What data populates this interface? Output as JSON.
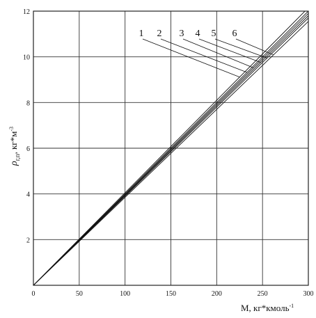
{
  "chart_data": {
    "type": "line",
    "title": "",
    "xlabel": "M, кг*кмоль",
    "xlabel_sup": "-1",
    "ylabel": "ρ",
    "ylabel_sub": "г,п",
    "ylabel_unit": ", кг*м",
    "ylabel_sup": "-3",
    "xlim": [
      0,
      300
    ],
    "ylim": [
      0,
      12
    ],
    "xticks": [
      0,
      50,
      100,
      150,
      200,
      250,
      300
    ],
    "yticks": [
      2,
      4,
      6,
      8,
      10,
      12
    ],
    "grid": true,
    "series": [
      {
        "label": "1",
        "x": [
          0,
          300
        ],
        "y": [
          0,
          12.15
        ]
      },
      {
        "label": "2",
        "x": [
          0,
          300
        ],
        "y": [
          0,
          12.0
        ]
      },
      {
        "label": "3",
        "x": [
          0,
          300
        ],
        "y": [
          0,
          11.9
        ]
      },
      {
        "label": "4",
        "x": [
          0,
          300
        ],
        "y": [
          0,
          11.8
        ]
      },
      {
        "label": "5",
        "x": [
          0,
          300
        ],
        "y": [
          0,
          11.7
        ]
      },
      {
        "label": "6",
        "x": [
          0,
          300
        ],
        "y": [
          0,
          11.55
        ]
      }
    ]
  }
}
